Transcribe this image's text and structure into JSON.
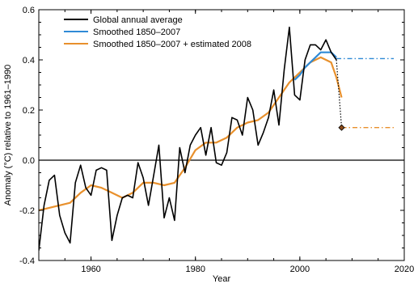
{
  "chart_data": {
    "type": "line",
    "title": "",
    "xlabel": "Year",
    "ylabel": "Anomaly (°C) relative to 1961–1990",
    "xlim": [
      1950,
      2020
    ],
    "ylim": [
      -0.4,
      0.6
    ],
    "xticks": [
      1960,
      1980,
      2000,
      2020
    ],
    "yticks": [
      -0.4,
      -0.2,
      0.0,
      0.2,
      0.4,
      0.6
    ],
    "xtick_labels": [
      "1960",
      "1980",
      "2000",
      "2020"
    ],
    "ytick_labels": [
      "-0.4",
      "-0.2",
      "0.0",
      "0.2",
      "0.4",
      "0.6"
    ],
    "grid": false,
    "legend_position": "top-left",
    "colors": {
      "annual": "#000000",
      "smoothed": "#2f8ad6",
      "smoothed_2008": "#e8902c",
      "zero_line": "#000000",
      "marker_fill": "#8a4a1a"
    },
    "series": [
      {
        "name": "Global annual average",
        "color": "#000000",
        "x": [
          1950,
          1951,
          1952,
          1953,
          1954,
          1955,
          1956,
          1957,
          1958,
          1959,
          1960,
          1961,
          1962,
          1963,
          1964,
          1965,
          1966,
          1967,
          1968,
          1969,
          1970,
          1971,
          1972,
          1973,
          1974,
          1975,
          1976,
          1977,
          1978,
          1979,
          1980,
          1981,
          1982,
          1983,
          1984,
          1985,
          1986,
          1987,
          1988,
          1989,
          1990,
          1991,
          1992,
          1993,
          1994,
          1995,
          1996,
          1997,
          1998,
          1999,
          2000,
          2001,
          2002,
          2003,
          2004,
          2005,
          2006,
          2007,
          2008
        ],
        "y": [
          -0.36,
          -0.18,
          -0.08,
          -0.06,
          -0.22,
          -0.29,
          -0.33,
          -0.09,
          -0.02,
          -0.11,
          -0.14,
          -0.04,
          -0.03,
          -0.04,
          -0.32,
          -0.22,
          -0.15,
          -0.14,
          -0.15,
          -0.01,
          -0.07,
          -0.18,
          -0.06,
          0.06,
          -0.23,
          -0.15,
          -0.24,
          0.05,
          -0.05,
          0.06,
          0.1,
          0.13,
          0.02,
          0.13,
          -0.01,
          -0.02,
          0.03,
          0.17,
          0.16,
          0.1,
          0.25,
          0.2,
          0.06,
          0.11,
          0.17,
          0.28,
          0.14,
          0.36,
          0.53,
          0.26,
          0.24,
          0.4,
          0.46,
          0.46,
          0.44,
          0.48,
          0.43,
          0.4,
          0.13
        ]
      },
      {
        "name": "Smoothed 1850–2007",
        "color": "#2f8ad6",
        "x": [
          1999,
          2000,
          2001,
          2002,
          2003,
          2004,
          2005,
          2006,
          2007
        ],
        "y": [
          0.32,
          0.34,
          0.37,
          0.39,
          0.41,
          0.43,
          0.43,
          0.43,
          0.41
        ],
        "projection": {
          "x": [
            2007,
            2018
          ],
          "y": [
            0.405,
            0.405
          ],
          "style": "dash-dot"
        }
      },
      {
        "name": "Smoothed 1850–2007 + estimated 2008",
        "color": "#e8902c",
        "x": [
          1950,
          1952,
          1954,
          1956,
          1958,
          1960,
          1962,
          1964,
          1966,
          1968,
          1970,
          1972,
          1974,
          1976,
          1978,
          1980,
          1982,
          1984,
          1986,
          1988,
          1990,
          1992,
          1994,
          1996,
          1998,
          2000,
          2002,
          2004,
          2006,
          2007,
          2008
        ],
        "y": [
          -0.2,
          -0.19,
          -0.18,
          -0.17,
          -0.13,
          -0.1,
          -0.11,
          -0.13,
          -0.15,
          -0.13,
          -0.09,
          -0.09,
          -0.1,
          -0.09,
          -0.03,
          0.04,
          0.07,
          0.07,
          0.09,
          0.13,
          0.15,
          0.16,
          0.19,
          0.25,
          0.31,
          0.35,
          0.39,
          0.41,
          0.39,
          0.33,
          0.25
        ],
        "projection": {
          "x": [
            2008,
            2018
          ],
          "y": [
            0.13,
            0.13
          ],
          "style": "dash-dot"
        }
      }
    ],
    "annotations": [
      {
        "type": "dotted-drop",
        "x": 2007,
        "y_from": 0.4,
        "y_to": 0.13
      },
      {
        "type": "diamond-marker",
        "x": 2008,
        "y": 0.13
      }
    ]
  }
}
